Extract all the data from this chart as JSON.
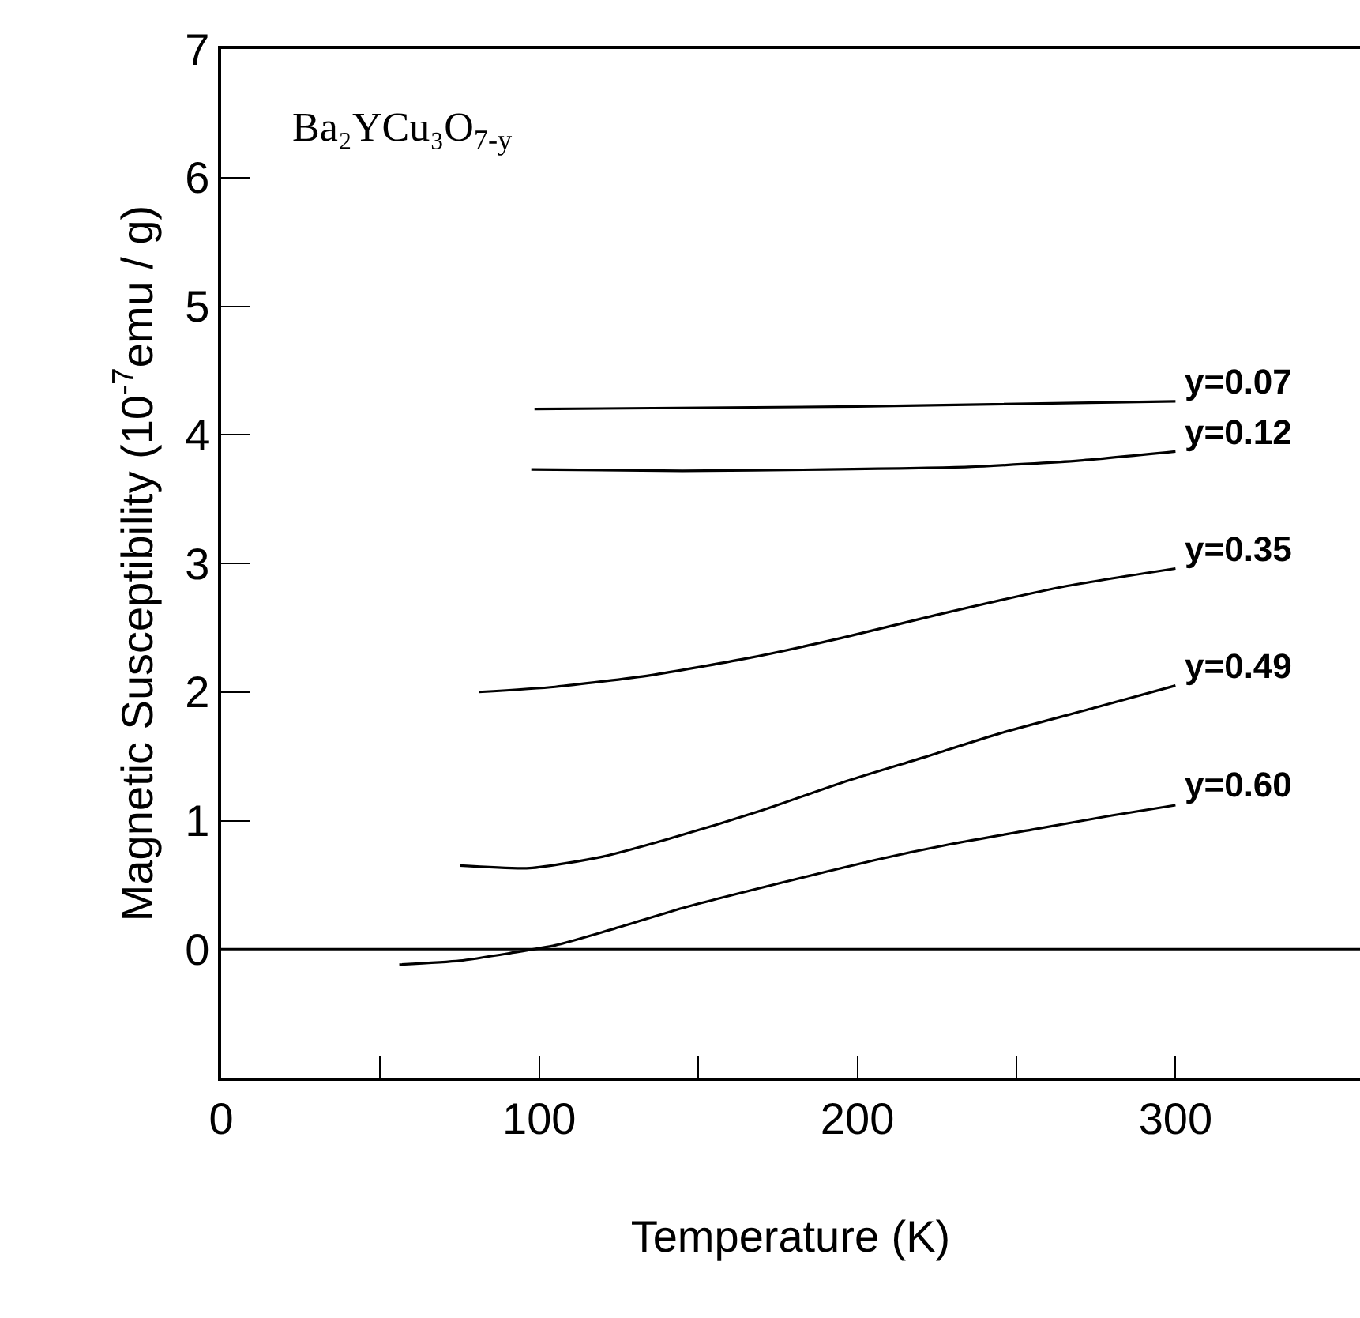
{
  "chart_data": {
    "type": "line",
    "title": "Ba₂YCu₃O$_{7-y}$",
    "xlabel": "Temperature (K)",
    "ylabel": "Magnetic Susceptibility (10$^{-7}$emu / g)",
    "xlim": [
      0,
      358
    ],
    "ylim": [
      -1,
      7
    ],
    "xticks": [
      0,
      {
        "value": 50,
        "label": null
      },
      100,
      {
        "value": 150,
        "label": null
      },
      200,
      {
        "value": 250,
        "label": null
      },
      300
    ],
    "yticks": [
      0,
      1,
      2,
      3,
      4,
      5,
      6,
      7
    ],
    "legend": false,
    "marker": "none",
    "line_style": "solid",
    "ref_lines": [
      {
        "axis": "y",
        "value": 0,
        "color": "#000000"
      }
    ],
    "series": [
      {
        "name": "y=0.07",
        "color": "#000000",
        "x": [
          98.5,
          200,
          300
        ],
        "values": [
          4.2,
          4.22,
          4.26
        ]
      },
      {
        "name": "y=0.12",
        "color": "#000000",
        "x": [
          97.5,
          145,
          190,
          235,
          270,
          300
        ],
        "values": [
          3.73,
          3.72,
          3.73,
          3.75,
          3.8,
          3.87
        ]
      },
      {
        "name": "y=0.35",
        "color": "#000000",
        "x": [
          81,
          105,
          135,
          165,
          195,
          225,
          265,
          300
        ],
        "values": [
          2.0,
          2.04,
          2.13,
          2.26,
          2.42,
          2.6,
          2.82,
          2.96
        ]
      },
      {
        "name": "y=0.49",
        "color": "#000000",
        "x": [
          75,
          97,
          120,
          141,
          170,
          197,
          222,
          245,
          275,
          300
        ],
        "values": [
          0.65,
          0.63,
          0.72,
          0.86,
          1.08,
          1.31,
          1.5,
          1.68,
          1.88,
          2.05
        ]
      },
      {
        "name": "y=0.60",
        "color": "#000000",
        "x": [
          56,
          75,
          91,
          105,
          125,
          145,
          175,
          205,
          230,
          255,
          280,
          300
        ],
        "values": [
          -0.12,
          -0.09,
          -0.03,
          0.03,
          0.17,
          0.32,
          0.51,
          0.69,
          0.82,
          0.93,
          1.04,
          1.12
        ]
      }
    ]
  }
}
